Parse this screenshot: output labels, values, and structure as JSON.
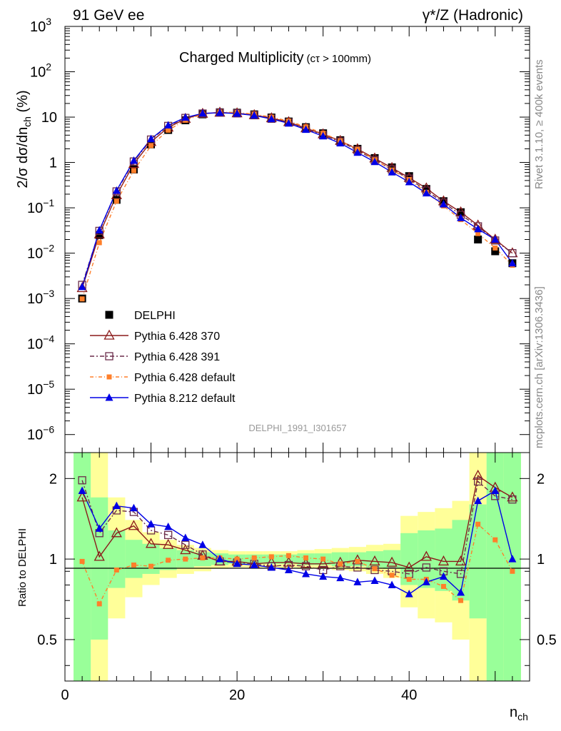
{
  "header": {
    "left": "91 GeV ee",
    "right": "γ*/Z (Hadronic)",
    "plot_title": "Charged Multiplicity",
    "plot_subtitle": "(cτ > 100mm)",
    "rivet_label": "Rivet 3.1.10, ≥ 400k events",
    "mcplots_label": "mcplots.cern.ch [arXiv:1306.3436]",
    "analysis_id": "DELPHI_1991_I301657"
  },
  "chart_data": [
    {
      "type": "line",
      "title": "Charged Multiplicity",
      "ylabel": "2/σ dσ/dn_ch (%)",
      "xlabel": "n_ch",
      "yscale": "log",
      "xlim": [
        0,
        54
      ],
      "ylim": [
        4e-07,
        1000
      ],
      "y_ticks": [
        {
          "v": 1e-06,
          "label": "10",
          "exp": "−6"
        },
        {
          "v": 1e-05,
          "label": "10",
          "exp": "−5"
        },
        {
          "v": 0.0001,
          "label": "10",
          "exp": "−4"
        },
        {
          "v": 0.001,
          "label": "10",
          "exp": "−3"
        },
        {
          "v": 0.01,
          "label": "10",
          "exp": "−2"
        },
        {
          "v": 0.1,
          "label": "10",
          "exp": "−1"
        },
        {
          "v": 1,
          "label": "1",
          "exp": ""
        },
        {
          "v": 10,
          "label": "10",
          "exp": ""
        },
        {
          "v": 100,
          "label": "10",
          "exp": "2"
        },
        {
          "v": 1000,
          "label": "10",
          "exp": "3"
        }
      ],
      "x": [
        2,
        4,
        6,
        8,
        10,
        12,
        14,
        16,
        18,
        20,
        22,
        24,
        26,
        28,
        30,
        32,
        34,
        36,
        38,
        40,
        42,
        44,
        46,
        48,
        50,
        52
      ],
      "series": [
        {
          "name": "DELPHI",
          "color": "#000000",
          "marker": "square-filled",
          "values": [
            0.001,
            0.025,
            0.15,
            0.7,
            2.5,
            5.2,
            8.5,
            11.5,
            12.8,
            12.5,
            11.5,
            9.8,
            8.0,
            6.0,
            4.4,
            3.1,
            2.0,
            1.25,
            0.78,
            0.5,
            0.26,
            0.14,
            0.08,
            0.02,
            0.011,
            0.006
          ]
        },
        {
          "name": "Pythia 6.428 370",
          "color": "#8b1a1a",
          "marker": "triangle-open",
          "dash": "",
          "values": [
            0.0017,
            0.026,
            0.19,
            0.93,
            2.85,
            5.9,
            9.2,
            11.9,
            12.6,
            12.2,
            11.1,
            9.5,
            7.8,
            5.7,
            4.2,
            3.0,
            1.98,
            1.23,
            0.76,
            0.46,
            0.27,
            0.14,
            0.08,
            0.041,
            0.02,
            0.01
          ]
        },
        {
          "name": "Pythia 6.428 391",
          "color": "#6b2c4a",
          "marker": "square-open",
          "dash": "6,3,2,3",
          "values": [
            0.002,
            0.031,
            0.23,
            1.05,
            3.2,
            6.4,
            9.6,
            12.0,
            12.6,
            12.1,
            11.0,
            9.2,
            7.6,
            5.6,
            4.0,
            2.9,
            1.85,
            1.13,
            0.7,
            0.44,
            0.24,
            0.13,
            0.07,
            0.039,
            0.019,
            0.01
          ]
        },
        {
          "name": "Pythia 6.428 default",
          "color": "#ff7f2a",
          "marker": "square-filled-small",
          "dash": "5,3,1,3",
          "values": [
            0.00098,
            0.017,
            0.14,
            0.66,
            2.35,
            5.15,
            8.55,
            11.7,
            12.9,
            12.6,
            11.6,
            10.0,
            8.2,
            6.1,
            4.4,
            3.0,
            1.95,
            1.15,
            0.68,
            0.42,
            0.22,
            0.11,
            0.055,
            0.027,
            0.013,
            0.0054
          ]
        },
        {
          "name": "Pythia 8.212 default",
          "color": "#0000e6",
          "marker": "triangle-filled",
          "dash": "",
          "values": [
            0.0018,
            0.032,
            0.24,
            1.1,
            3.3,
            6.6,
            9.8,
            12.1,
            12.5,
            12.0,
            10.9,
            9.1,
            7.3,
            5.3,
            3.8,
            2.65,
            1.65,
            1.03,
            0.61,
            0.37,
            0.21,
            0.12,
            0.06,
            0.034,
            0.02,
            0.006
          ]
        }
      ]
    },
    {
      "type": "line",
      "ylabel": "Ratio to DELPHI",
      "xlabel": "n_ch",
      "yscale": "log",
      "xlim": [
        0,
        54
      ],
      "ylim": [
        0.35,
        2.5
      ],
      "y_ticks": [
        {
          "v": 0.5,
          "label": "0.5"
        },
        {
          "v": 1,
          "label": "1"
        },
        {
          "v": 2,
          "label": "2"
        }
      ],
      "x_ticks": [
        {
          "v": 0,
          "label": "0"
        },
        {
          "v": 20,
          "label": "20"
        },
        {
          "v": 40,
          "label": "40"
        }
      ],
      "bands": {
        "edges": [
          1,
          3,
          5,
          7,
          9,
          11,
          13,
          15,
          17,
          19,
          21,
          23,
          25,
          27,
          29,
          31,
          33,
          35,
          37,
          39,
          41,
          43,
          45,
          47,
          49,
          51,
          53
        ],
        "yellow_lo": [
          0.25,
          0.35,
          0.6,
          0.72,
          0.8,
          0.85,
          0.88,
          0.9,
          0.92,
          0.93,
          0.93,
          0.93,
          0.93,
          0.92,
          0.92,
          0.91,
          0.9,
          0.88,
          0.85,
          0.66,
          0.6,
          0.58,
          0.5,
          0.25,
          0.25,
          0.25
        ],
        "yellow_hi": [
          2.5,
          2.5,
          1.7,
          1.4,
          1.26,
          1.18,
          1.13,
          1.1,
          1.08,
          1.07,
          1.07,
          1.07,
          1.07,
          1.08,
          1.09,
          1.1,
          1.11,
          1.13,
          1.14,
          1.45,
          1.5,
          1.55,
          1.65,
          2.5,
          2.5,
          2.5
        ],
        "green_lo": [
          0.25,
          0.5,
          0.78,
          0.85,
          0.88,
          0.91,
          0.93,
          0.94,
          0.95,
          0.96,
          0.96,
          0.96,
          0.96,
          0.95,
          0.95,
          0.94,
          0.94,
          0.93,
          0.92,
          0.8,
          0.78,
          0.76,
          0.7,
          0.6,
          0.25,
          0.25
        ],
        "green_hi": [
          2.5,
          1.7,
          1.28,
          1.18,
          1.14,
          1.1,
          1.08,
          1.06,
          1.05,
          1.04,
          1.04,
          1.04,
          1.04,
          1.05,
          1.05,
          1.06,
          1.06,
          1.07,
          1.08,
          1.25,
          1.28,
          1.3,
          1.4,
          1.6,
          2.5,
          2.5
        ],
        "yellow_color": "#ffff99",
        "green_color": "#99ff99"
      },
      "x": [
        2,
        4,
        6,
        8,
        10,
        12,
        14,
        16,
        18,
        20,
        22,
        24,
        26,
        28,
        30,
        32,
        34,
        36,
        38,
        40,
        42,
        44,
        46,
        48,
        50,
        52
      ],
      "series": [
        {
          "name": "Pythia 6.428 370",
          "color": "#8b1a1a",
          "marker": "triangle-open",
          "dash": "",
          "values": [
            1.7,
            1.02,
            1.25,
            1.33,
            1.14,
            1.13,
            1.08,
            1.03,
            0.98,
            0.98,
            0.96,
            0.97,
            0.97,
            0.96,
            0.96,
            0.97,
            0.99,
            0.98,
            0.97,
            0.93,
            1.02,
            0.98,
            0.98,
            2.05,
            1.85,
            1.7
          ]
        },
        {
          "name": "Pythia 6.428 391",
          "color": "#6b2c4a",
          "marker": "square-open",
          "dash": "6,3,2,3",
          "values": [
            1.97,
            1.25,
            1.52,
            1.5,
            1.28,
            1.23,
            1.13,
            1.04,
            0.98,
            0.97,
            0.96,
            0.94,
            0.95,
            0.94,
            0.91,
            0.94,
            0.93,
            0.91,
            0.9,
            0.88,
            0.93,
            0.9,
            0.88,
            1.95,
            1.72,
            1.67
          ]
        },
        {
          "name": "Pythia 6.428 default",
          "color": "#ff7f2a",
          "marker": "square-filled-small",
          "dash": "5,3,1,3",
          "values": [
            0.98,
            0.68,
            0.91,
            0.95,
            0.94,
            0.99,
            1.0,
            1.01,
            1.01,
            1.0,
            1.01,
            1.02,
            1.03,
            1.01,
            1.0,
            0.96,
            0.98,
            0.92,
            0.87,
            0.84,
            0.84,
            0.79,
            0.7,
            1.35,
            1.18,
            0.9
          ]
        },
        {
          "name": "Pythia 8.212 default",
          "color": "#0000e6",
          "marker": "triangle-filled",
          "dash": "",
          "values": [
            1.8,
            1.3,
            1.58,
            1.55,
            1.35,
            1.32,
            1.2,
            1.13,
            1.0,
            0.96,
            0.95,
            0.93,
            0.91,
            0.88,
            0.86,
            0.85,
            0.82,
            0.83,
            0.8,
            0.74,
            0.82,
            0.86,
            0.75,
            1.65,
            1.8,
            1.0
          ]
        }
      ]
    }
  ]
}
